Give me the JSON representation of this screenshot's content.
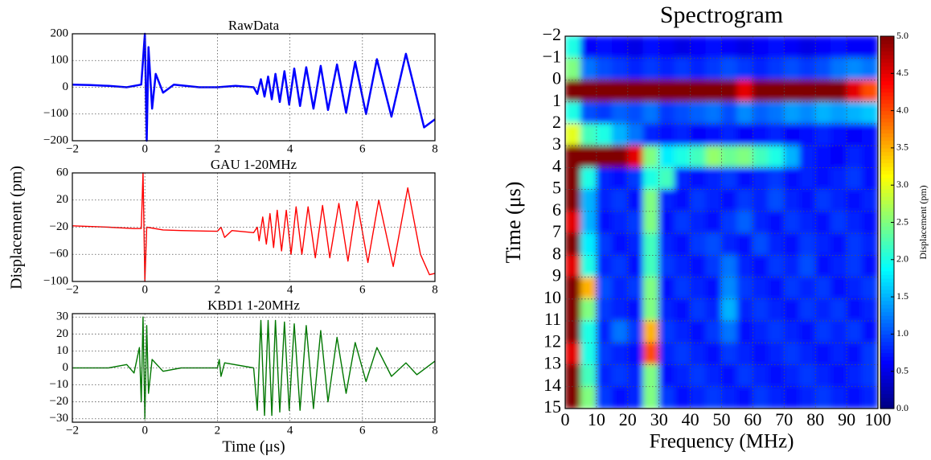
{
  "chart_data": [
    {
      "type": "line",
      "title": "RawData",
      "color": "#0000ff",
      "x": [
        -2,
        -1.5,
        -1,
        -0.5,
        -0.1,
        0,
        0.05,
        0.1,
        0.2,
        0.3,
        0.5,
        0.8,
        1.5,
        2,
        2.5,
        3,
        3.1,
        3.2,
        3.3,
        3.4,
        3.5,
        3.6,
        3.72,
        3.85,
        3.98,
        4.12,
        4.28,
        4.45,
        4.65,
        4.85,
        5.05,
        5.3,
        5.55,
        5.8,
        6.1,
        6.4,
        6.8,
        7.2,
        7.7,
        8
      ],
      "values": [
        10,
        8,
        5,
        0,
        10,
        200,
        -200,
        150,
        -80,
        50,
        -20,
        10,
        0,
        0,
        5,
        0,
        -25,
        30,
        -35,
        40,
        -45,
        50,
        -55,
        60,
        -65,
        70,
        -70,
        75,
        -80,
        80,
        -85,
        85,
        -95,
        95,
        -100,
        105,
        -110,
        125,
        -150,
        -120
      ],
      "xlim": [
        -2,
        8
      ],
      "ylim": [
        -200,
        200
      ],
      "xticks": [
        {
          "value": -2,
          "label": "−2"
        },
        0,
        2,
        4,
        6,
        8
      ],
      "yticks": [
        {
          "value": -200,
          "label": "−200"
        },
        {
          "value": -100,
          "label": "−100"
        },
        0,
        100,
        200
      ],
      "grid": true
    },
    {
      "type": "line",
      "title": "GAU 1-20MHz",
      "color": "#ff0000",
      "ylabel": "Displacement (pm)",
      "x": [
        -2,
        -1,
        -0.3,
        -0.1,
        -0.05,
        0,
        0.05,
        0.5,
        1,
        2,
        2.1,
        2.2,
        2.4,
        3,
        3.1,
        3.15,
        3.25,
        3.35,
        3.45,
        3.55,
        3.65,
        3.77,
        3.9,
        4.03,
        4.17,
        4.33,
        4.5,
        4.7,
        4.9,
        5.1,
        5.35,
        5.6,
        5.85,
        6.15,
        6.45,
        6.85,
        7.25,
        7.6,
        7.85,
        8
      ],
      "values": [
        -18,
        -20,
        -22,
        -22,
        60,
        -100,
        -20,
        -24,
        -25,
        -26,
        -20,
        -35,
        -25,
        -28,
        -20,
        -40,
        -5,
        -45,
        0,
        -50,
        5,
        -55,
        5,
        -60,
        10,
        -60,
        10,
        -65,
        12,
        -65,
        15,
        -70,
        18,
        -72,
        20,
        -78,
        38,
        -60,
        -90,
        -88
      ],
      "xlim": [
        -2,
        8
      ],
      "ylim": [
        -100,
        60
      ],
      "xticks": [
        {
          "value": -2,
          "label": "−2"
        },
        0,
        2,
        4,
        6,
        8
      ],
      "yticks": [
        {
          "value": -100,
          "label": "−100"
        },
        {
          "value": -60,
          "label": "−60"
        },
        {
          "value": -20,
          "label": "−20"
        },
        20,
        60
      ],
      "grid": true
    },
    {
      "type": "line",
      "title": "KBD1 1-20MHz",
      "color": "#007700",
      "xlabel": "Time (μs)",
      "x": [
        -2,
        -1,
        -0.5,
        -0.3,
        -0.15,
        -0.1,
        -0.05,
        0,
        0.05,
        0.1,
        0.2,
        0.5,
        1,
        2,
        2.05,
        2.1,
        2.2,
        3,
        3.1,
        3.2,
        3.3,
        3.4,
        3.5,
        3.6,
        3.72,
        3.85,
        3.98,
        4.12,
        4.28,
        4.45,
        4.65,
        4.85,
        5.05,
        5.3,
        5.55,
        5.8,
        6.1,
        6.4,
        6.8,
        7.2,
        7.5,
        8
      ],
      "values": [
        0,
        0,
        2,
        -3,
        12,
        -20,
        30,
        -30,
        25,
        -15,
        5,
        -2,
        0,
        0,
        5,
        -5,
        3,
        0,
        -25,
        28,
        -28,
        28,
        -28,
        28,
        -26,
        27,
        -25,
        26,
        -25,
        25,
        -24,
        22,
        -20,
        18,
        -15,
        15,
        -8,
        12,
        -5,
        3,
        -4,
        4
      ],
      "xlim": [
        -2,
        8
      ],
      "ylim": [
        -32,
        32
      ],
      "xticks": [
        {
          "value": -2,
          "label": "−2"
        },
        0,
        2,
        4,
        6,
        8
      ],
      "yticks": [
        {
          "value": -30,
          "label": "−30"
        },
        {
          "value": -20,
          "label": "−20"
        },
        {
          "value": -10,
          "label": "−10"
        },
        0,
        10,
        20,
        30
      ],
      "grid": true
    },
    {
      "type": "heatmap",
      "title": "Spectrogram",
      "xlabel": "Frequency (MHz)",
      "ylabel": "Time (μs)",
      "colormap": "jet",
      "y_inverted": true,
      "grid": true,
      "colorbar_label": "Displacement (pm)",
      "x": [
        2.5,
        7.5,
        12.5,
        17.5,
        22.5,
        27.5,
        32.5,
        37.5,
        42.5,
        47.5,
        52.5,
        57.5,
        62.5,
        67.5,
        72.5,
        77.5,
        82.5,
        87.5,
        92.5,
        97.5
      ],
      "y": [
        -1.5,
        -0.5,
        0.5,
        1.5,
        2.5,
        3.5,
        4.5,
        5.5,
        6.5,
        7.5,
        8.5,
        9.5,
        10.5,
        11.5,
        12.5,
        13.5,
        14.5
      ],
      "z": [
        [
          2,
          0.6,
          0.7,
          0.6,
          0.5,
          0.7,
          0.6,
          0.5,
          0.6,
          0.7,
          0.6,
          0.5,
          0.6,
          0.7,
          0.6,
          0.5,
          0.6,
          0.7,
          0.6,
          0.6
        ],
        [
          2.5,
          1.2,
          1,
          0.9,
          0.8,
          0.9,
          0.8,
          0.9,
          0.8,
          0.9,
          1,
          0.9,
          0.8,
          0.9,
          1,
          0.9,
          1,
          1.2,
          1.3,
          1.2
        ],
        [
          5,
          5,
          5,
          5,
          5,
          5,
          5,
          5,
          5,
          5,
          5,
          4.5,
          5,
          5,
          5,
          5,
          5,
          5,
          4.5,
          4
        ],
        [
          2,
          1,
          0.9,
          1.1,
          1,
          1.2,
          0.9,
          1,
          1.1,
          1.2,
          1,
          1.3,
          1.1,
          1.2,
          1.4,
          1.3,
          1.5,
          1.4,
          1.5,
          1.6
        ],
        [
          3,
          2.2,
          2,
          1.5,
          1.2,
          0.8,
          0.7,
          0.8,
          0.6,
          0.7,
          0.8,
          0.6,
          0.7,
          0.8,
          0.6,
          0.7,
          0.8,
          0.7,
          0.6,
          0.7
        ],
        [
          5,
          5,
          5,
          5,
          4.5,
          2.5,
          1.8,
          2,
          2.2,
          2.6,
          2.4,
          2.5,
          2.2,
          2,
          1.5,
          0.8,
          0.7,
          0.6,
          0.8,
          0.7
        ],
        [
          5,
          2,
          0.8,
          0.7,
          0.9,
          2,
          2.2,
          0.8,
          0.7,
          0.8,
          0.9,
          0.7,
          0.8,
          0.9,
          0.7,
          0.8,
          0.7,
          0.8,
          0.9,
          0.7
        ],
        [
          5,
          1.5,
          0.8,
          0.9,
          0.7,
          2.5,
          0.8,
          0.7,
          0.9,
          0.8,
          0.7,
          0.9,
          0.8,
          1,
          0.8,
          0.7,
          0.9,
          0.8,
          0.7,
          0.8
        ],
        [
          4.5,
          1.5,
          0.7,
          0.8,
          0.9,
          2.5,
          0.7,
          0.9,
          0.8,
          0.7,
          0.9,
          1.1,
          0.8,
          0.7,
          0.9,
          0.8,
          0.7,
          0.9,
          0.8,
          0.7
        ],
        [
          5,
          1.8,
          0.9,
          0.7,
          0.8,
          2.2,
          0.8,
          0.7,
          0.9,
          1,
          0.8,
          0.7,
          1,
          0.8,
          0.7,
          0.9,
          0.8,
          0.7,
          0.9,
          0.8
        ],
        [
          4.5,
          2,
          0.8,
          0.9,
          0.7,
          2.2,
          0.9,
          0.8,
          0.7,
          0.9,
          1.2,
          0.8,
          0.7,
          0.9,
          0.8,
          1,
          0.7,
          0.8,
          0.9,
          0.7
        ],
        [
          5,
          3.5,
          1,
          0.8,
          0.9,
          2.5,
          0.7,
          0.9,
          0.8,
          0.7,
          1.3,
          0.9,
          0.8,
          0.7,
          0.9,
          0.8,
          0.9,
          0.7,
          0.8,
          0.9
        ],
        [
          5,
          2.5,
          0.9,
          0.8,
          0.7,
          2.5,
          0.8,
          0.7,
          0.9,
          0.8,
          1.5,
          0.8,
          0.9,
          0.8,
          0.7,
          0.9,
          0.8,
          0.9,
          0.7,
          0.8
        ],
        [
          5,
          2,
          0.8,
          1.2,
          0.9,
          3.5,
          0.9,
          0.8,
          0.7,
          0.9,
          1.2,
          0.7,
          0.8,
          0.9,
          0.8,
          0.7,
          0.9,
          0.8,
          0.9,
          0.7
        ],
        [
          4.5,
          2,
          0.9,
          0.8,
          0.7,
          4,
          0.8,
          0.9,
          0.8,
          0.7,
          0.9,
          0.8,
          0.7,
          0.8,
          0.9,
          0.8,
          0.7,
          0.8,
          0.7,
          0.9
        ],
        [
          5,
          2.2,
          0.8,
          0.9,
          0.8,
          2.5,
          0.7,
          0.8,
          0.9,
          0.8,
          0.7,
          0.9,
          0.8,
          0.7,
          0.8,
          0.9,
          0.8,
          0.7,
          0.8,
          0.9
        ],
        [
          5,
          2.5,
          0.9,
          0.7,
          0.8,
          2.5,
          0.9,
          0.7,
          0.8,
          0.9,
          0.8,
          0.7,
          0.9,
          0.8,
          0.7,
          0.8,
          0.9,
          0.8,
          0.7,
          0.8
        ]
      ],
      "xlim": [
        0,
        100
      ],
      "ylim": [
        -2,
        15
      ],
      "xticks": [
        0,
        10,
        20,
        30,
        40,
        50,
        60,
        70,
        80,
        90,
        100
      ],
      "yticks": [
        {
          "value": -2,
          "label": "−2"
        },
        {
          "value": -1,
          "label": "−1"
        },
        0,
        1,
        2,
        3,
        4,
        5,
        6,
        7,
        8,
        9,
        10,
        11,
        12,
        13,
        14,
        15
      ],
      "zlim": [
        0,
        5
      ],
      "zticks": [
        {
          "value": 0,
          "label": "0.0"
        },
        0.5,
        {
          "value": 1,
          "label": "1.0"
        },
        1.5,
        {
          "value": 2,
          "label": "2.0"
        },
        2.5,
        {
          "value": 3,
          "label": "3.0"
        },
        3.5,
        {
          "value": 4,
          "label": "4.0"
        },
        4.5,
        {
          "value": 5,
          "label": "5.0"
        }
      ]
    }
  ]
}
